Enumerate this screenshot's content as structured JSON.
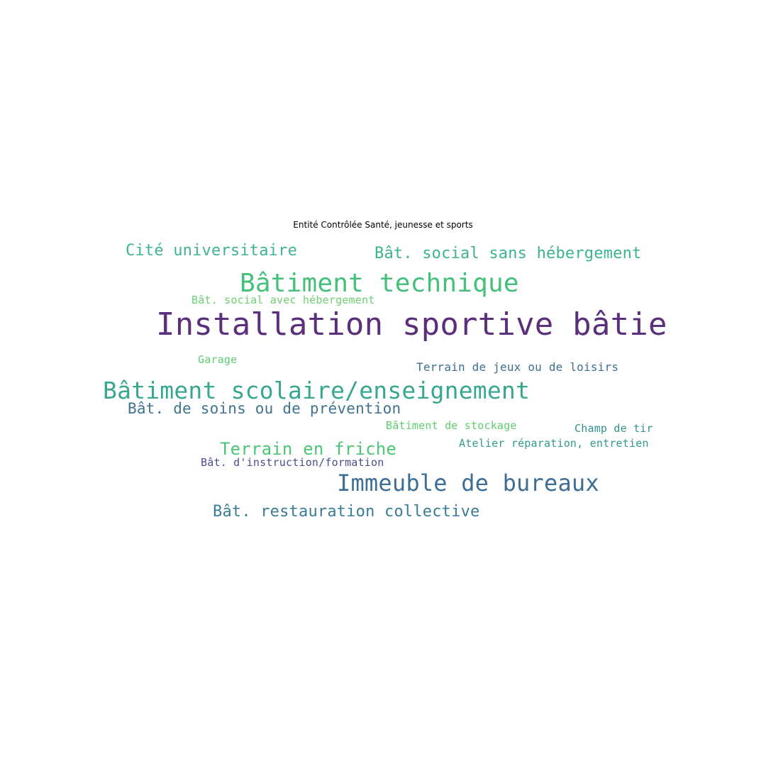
{
  "title": "Entité Contrôlée Santé, jeunesse et sports",
  "words": {
    "installation": {
      "text": "Installation sportive bâtie",
      "color": "#5b2f7d"
    },
    "batiment_technique": {
      "text": "Bâtiment technique",
      "color": "#45c07a"
    },
    "scolaire": {
      "text": "Bâtiment scolaire/enseignement",
      "color": "#37a88f"
    },
    "bureaux": {
      "text": "Immeuble de bureaux",
      "color": "#3d6e96"
    },
    "friche": {
      "text": "Terrain en friche",
      "color": "#4cc674"
    },
    "restauration": {
      "text": "Bât. restauration collective",
      "color": "#3a7c93"
    },
    "cite": {
      "text": "Cité universitaire",
      "color": "#3fb393"
    },
    "social_sans": {
      "text": "Bât. social sans hébergement",
      "color": "#3cb38f"
    },
    "soins": {
      "text": "Bât. de soins ou de prévention",
      "color": "#40738f"
    },
    "terrain_jeux": {
      "text": "Terrain de jeux ou de loisirs",
      "color": "#3e6f91"
    },
    "social_avec": {
      "text": "Bât. social avec hébergement",
      "color": "#6dcf73"
    },
    "atelier": {
      "text": "Atelier réparation, entretien",
      "color": "#2f9b8b"
    },
    "stockage": {
      "text": "Bâtiment de stockage",
      "color": "#5fcd6f"
    },
    "champ": {
      "text": "Champ de tir",
      "color": "#32918c"
    },
    "instruction": {
      "text": "Bât. d'instruction/formation",
      "color": "#4a4e8c"
    },
    "garage": {
      "text": "Garage",
      "color": "#5fce70"
    }
  }
}
